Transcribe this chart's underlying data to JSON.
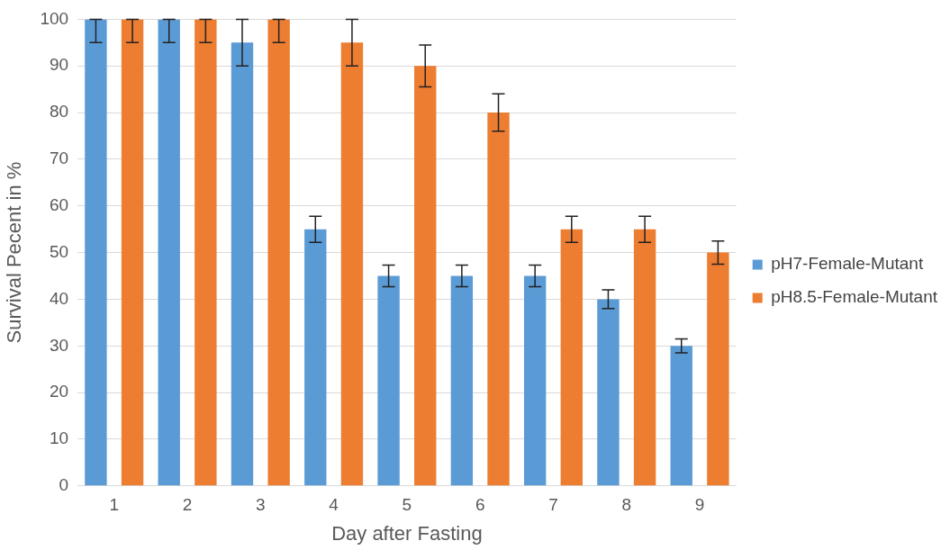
{
  "chart_data": {
    "type": "bar",
    "xlabel": "Day after Fasting",
    "ylabel": "Survival Pecent in %",
    "categories": [
      "1",
      "2",
      "3",
      "4",
      "5",
      "6",
      "7",
      "8",
      "9"
    ],
    "series": [
      {
        "name": "pH7-Female-Mutant",
        "color": "#5b9bd5",
        "values": [
          100,
          100,
          95,
          55,
          45,
          45,
          45,
          40,
          30
        ],
        "errors": [
          [
            95,
            100
          ],
          [
            95,
            100
          ],
          5,
          2.8,
          2.3,
          2.3,
          2.3,
          2,
          1.5
        ]
      },
      {
        "name": "pH8.5-Female-Mutant",
        "color": "#ed7d31",
        "values": [
          100,
          100,
          100,
          95,
          90,
          80,
          55,
          55,
          50
        ],
        "errors": [
          [
            95,
            100
          ],
          [
            95,
            100
          ],
          [
            95,
            100
          ],
          5,
          4.5,
          4,
          2.8,
          2.8,
          2.5
        ]
      }
    ],
    "ylim": [
      0,
      100
    ],
    "yticks": [
      0,
      10,
      20,
      30,
      40,
      50,
      60,
      70,
      80,
      90,
      100
    ],
    "grid": "y",
    "legend": "right"
  }
}
